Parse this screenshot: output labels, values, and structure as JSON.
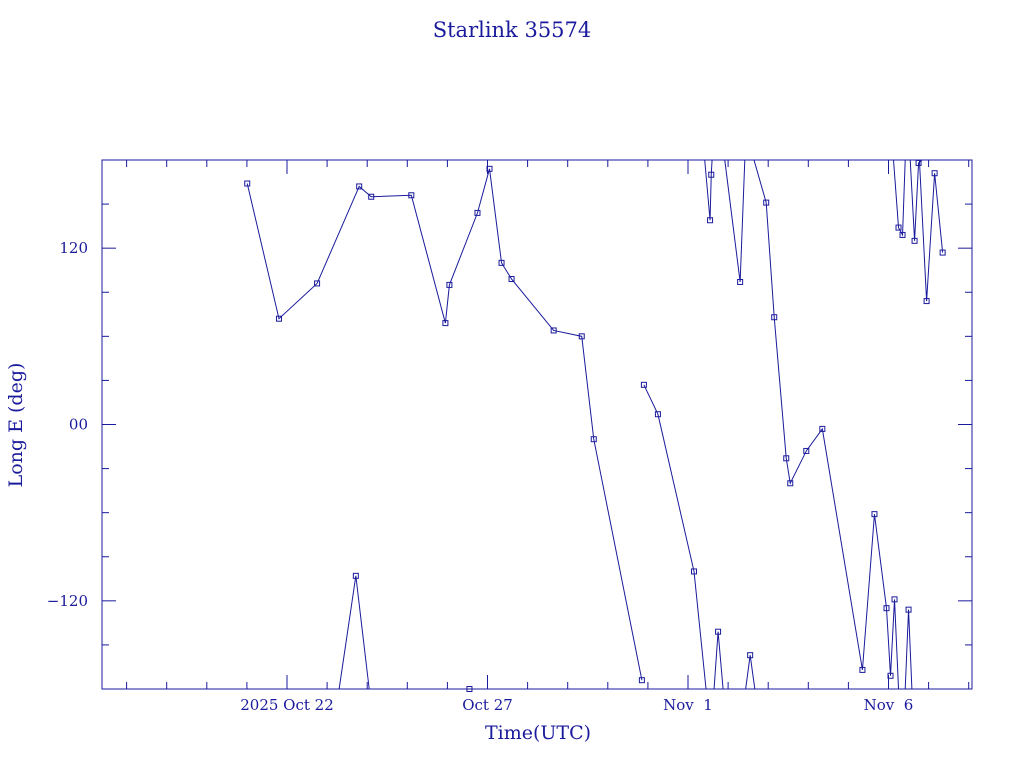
{
  "chart_data": {
    "type": "line",
    "title": "Starlink 35574",
    "xlabel": "Time(UTC)",
    "ylabel": "Long E (deg)",
    "ylim": [
      -180,
      180
    ],
    "xlim_days_label": "Oct 19.4 – Nov 8.9 2025",
    "y_ticks": [
      {
        "value": 120,
        "label": "120"
      },
      {
        "value": 0,
        "label": "00"
      },
      {
        "value": -120,
        "label": "−120"
      }
    ],
    "x_ticks": [
      {
        "date": "2025-10-22",
        "label": "2025 Oct 22"
      },
      {
        "date": "2025-10-27",
        "label": "Oct 27"
      },
      {
        "date": "2025-11-01",
        "label": "Nov  1"
      },
      {
        "date": "2025-11-06",
        "label": "Nov  6"
      }
    ],
    "line_color": "#1a1a9c",
    "marker": "square",
    "series": [
      {
        "name": "",
        "points": [
          {
            "t": "2025-10-21T00:12",
            "lon": 164
          },
          {
            "t": "2025-10-21T19:12",
            "lon": 72
          },
          {
            "t": "2025-10-22T18:00",
            "lon": 96
          },
          {
            "t": "2025-10-23T19:12",
            "lon": 162
          },
          {
            "t": "2025-10-24T02:24",
            "lon": 155
          },
          {
            "t": "2025-10-25T02:24",
            "lon": 156
          },
          {
            "t": "2025-10-25T22:48",
            "lon": 69
          },
          {
            "t": "2025-10-26T01:12",
            "lon": 95
          },
          {
            "t": "2025-10-26T18:00",
            "lon": 144
          },
          {
            "t": "2025-10-27T01:12",
            "lon": 174
          },
          {
            "t": "2025-10-27T08:24",
            "lon": 110
          },
          {
            "t": "2025-10-27T14:24",
            "lon": 99
          },
          {
            "t": "2025-10-28T15:36",
            "lon": 64
          },
          {
            "t": "2025-10-29T08:24",
            "lon": 60
          },
          {
            "t": "2025-10-29T15:36",
            "lon": -10
          },
          {
            "t": "2025-10-30T20:24",
            "lon": -174
          }
        ]
      },
      {
        "name": "",
        "points": [
          {
            "t": "2025-10-30T21:36",
            "lon": 27
          },
          {
            "t": "2025-10-31T06:00",
            "lon": 7
          },
          {
            "t": "2025-11-01T03:36",
            "lon": -100
          },
          {
            "t": "2025-11-01T10:48",
            "lon": -180
          }
        ]
      },
      {
        "name": "",
        "points": [
          {
            "t": "2025-11-01T10:00",
            "lon": 180
          },
          {
            "t": "2025-11-01T13:12",
            "lon": 139
          },
          {
            "t": "2025-11-01T13:55",
            "lon": 170
          },
          {
            "t": "2025-11-01T14:24",
            "lon": 180
          }
        ]
      },
      {
        "name": "",
        "points": [
          {
            "t": "2025-11-01T15:36",
            "lon": -180
          },
          {
            "t": "2025-11-01T18:00",
            "lon": -141
          },
          {
            "t": "2025-11-01T21:00",
            "lon": -180
          }
        ]
      },
      {
        "name": "",
        "points": [
          {
            "t": "2025-11-01T22:00",
            "lon": 180
          },
          {
            "t": "2025-11-02T07:12",
            "lon": 97
          },
          {
            "t": "2025-11-02T10:00",
            "lon": 180
          }
        ]
      },
      {
        "name": "",
        "points": [
          {
            "t": "2025-11-02T10:30",
            "lon": -180
          },
          {
            "t": "2025-11-02T13:12",
            "lon": -157
          },
          {
            "t": "2025-11-02T16:00",
            "lon": -180
          }
        ]
      },
      {
        "name": "",
        "points": [
          {
            "t": "2025-11-02T15:30",
            "lon": 180
          },
          {
            "t": "2025-11-02T22:48",
            "lon": 151
          },
          {
            "t": "2025-11-03T03:36",
            "lon": 73
          },
          {
            "t": "2025-11-03T10:48",
            "lon": -23
          },
          {
            "t": "2025-11-03T13:12",
            "lon": -40
          },
          {
            "t": "2025-11-03T22:48",
            "lon": -18
          },
          {
            "t": "2025-11-04T08:24",
            "lon": -3
          },
          {
            "t": "2025-11-05T08:24",
            "lon": -167
          },
          {
            "t": "2025-11-05T15:36",
            "lon": -61
          },
          {
            "t": "2025-11-05T22:48",
            "lon": -125
          },
          {
            "t": "2025-11-06T01:12",
            "lon": -171
          },
          {
            "t": "2025-11-06T03:36",
            "lon": -119
          },
          {
            "t": "2025-11-06T06:00",
            "lon": -180
          }
        ]
      },
      {
        "name": "",
        "points": [
          {
            "t": "2025-11-06T03:00",
            "lon": 180
          },
          {
            "t": "2025-11-06T06:00",
            "lon": 134
          },
          {
            "t": "2025-11-06T08:24",
            "lon": 129
          },
          {
            "t": "2025-11-06T10:00",
            "lon": 180
          }
        ]
      },
      {
        "name": "",
        "points": [
          {
            "t": "2025-11-06T10:00",
            "lon": -180
          },
          {
            "t": "2025-11-06T12:00",
            "lon": -126
          },
          {
            "t": "2025-11-06T14:00",
            "lon": -180
          }
        ]
      },
      {
        "name": "",
        "points": [
          {
            "t": "2025-11-06T13:00",
            "lon": 180
          },
          {
            "t": "2025-11-06T15:36",
            "lon": 125
          },
          {
            "t": "2025-11-06T18:00",
            "lon": 178
          },
          {
            "t": "2025-11-06T20:00",
            "lon": 180
          }
        ]
      },
      {
        "name": "",
        "points": [
          {
            "t": "2025-11-06T18:30",
            "lon": 180
          },
          {
            "t": "2025-11-06T22:48",
            "lon": 84
          },
          {
            "t": "2025-11-07T03:36",
            "lon": 171
          },
          {
            "t": "2025-11-07T08:24",
            "lon": 117
          }
        ]
      },
      {
        "name": "",
        "points": [
          {
            "t": "2025-10-23T07:12",
            "lon": -180
          },
          {
            "t": "2025-10-23T17:12",
            "lon": -103
          },
          {
            "t": "2025-10-24T01:12",
            "lon": -180
          }
        ]
      },
      {
        "name": "",
        "points": [
          {
            "t": "2025-10-26T13:12",
            "lon": -180
          }
        ]
      }
    ]
  }
}
